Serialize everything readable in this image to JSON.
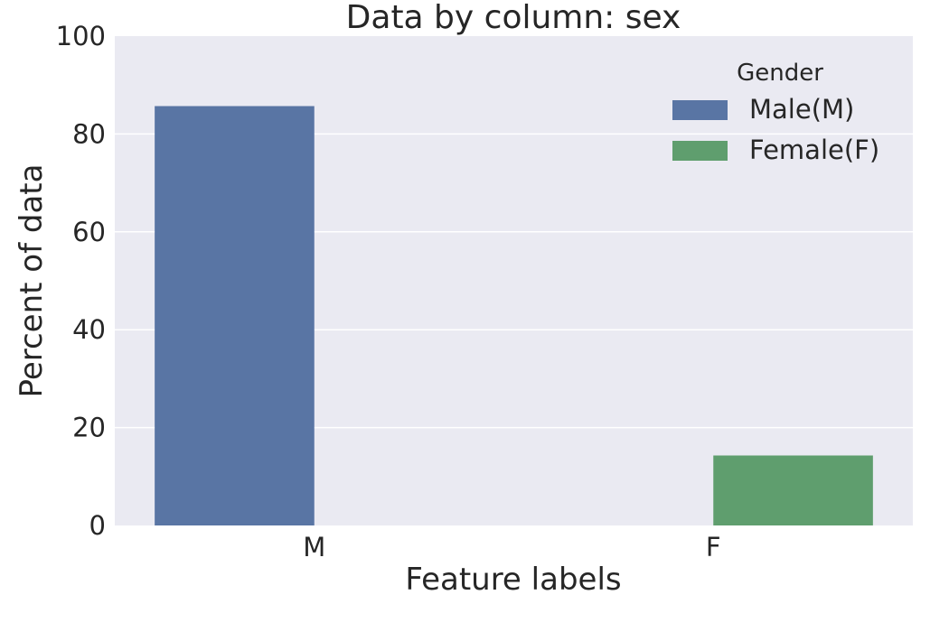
{
  "chart_data": {
    "type": "bar",
    "title": "Data by column: sex",
    "xlabel": "Feature labels",
    "ylabel": "Percent of data",
    "categories": [
      "M",
      "F"
    ],
    "series": [
      {
        "name": "Male(M)",
        "values": [
          85.7,
          null
        ],
        "color": "#5975a4"
      },
      {
        "name": "Female(F)",
        "values": [
          null,
          14.3
        ],
        "color": "#5f9e6e"
      }
    ],
    "ylim": [
      0,
      100
    ],
    "yticks": [
      0,
      20,
      40,
      60,
      80,
      100
    ],
    "grid": true,
    "legend": {
      "title": "Gender",
      "placement": "top-right"
    },
    "background": "#eaeaf2"
  }
}
